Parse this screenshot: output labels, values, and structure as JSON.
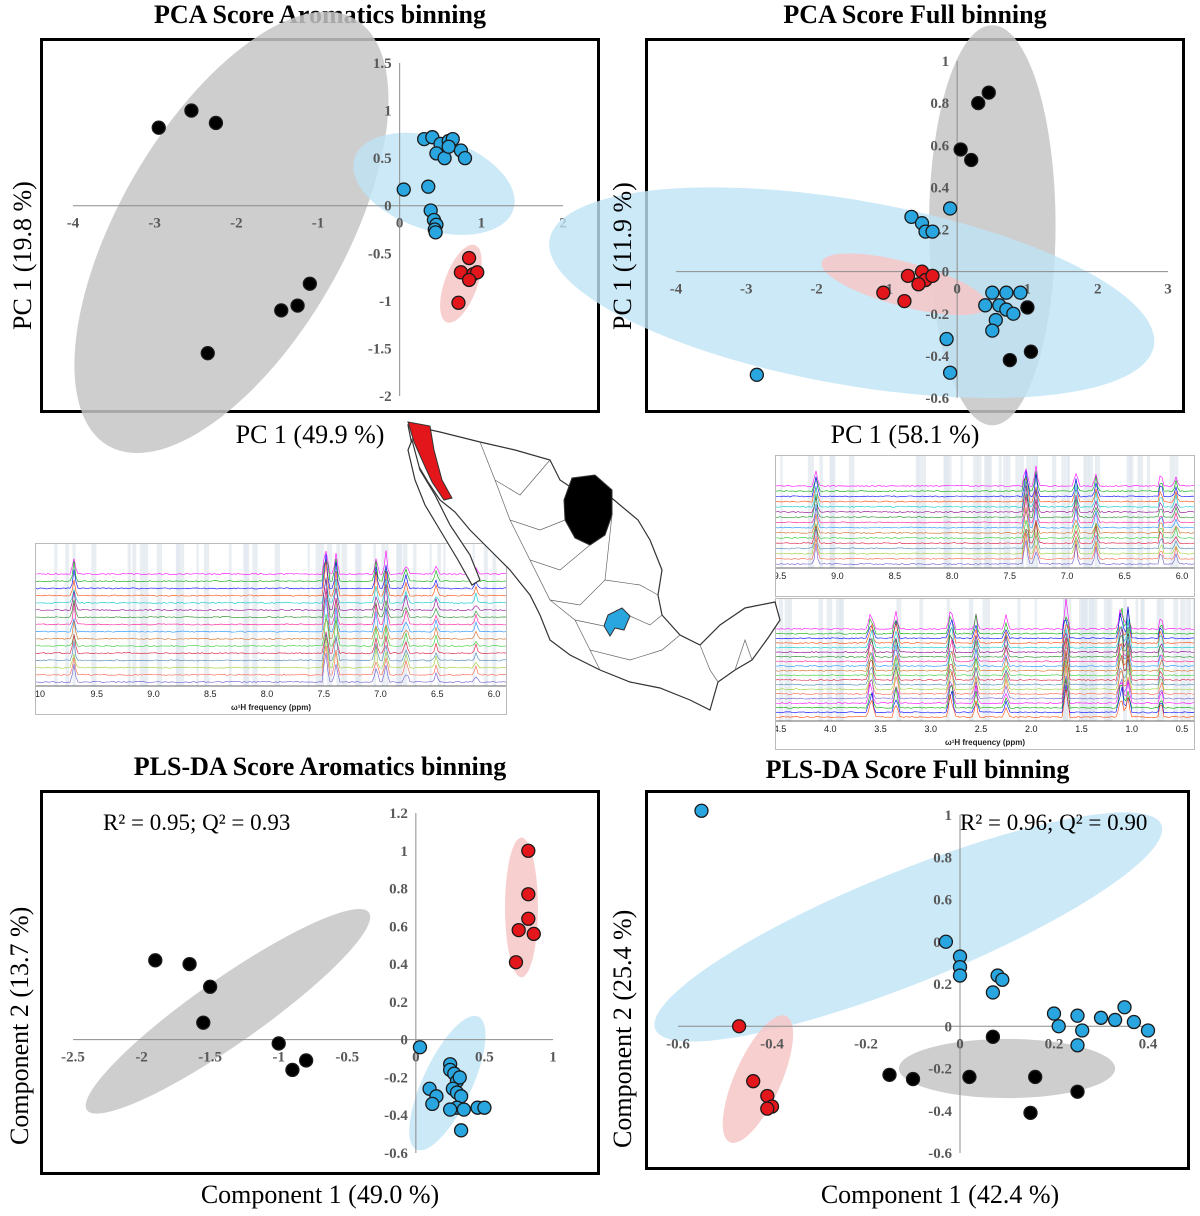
{
  "colors": {
    "blue": "#29a6e0",
    "red": "#e3161b",
    "black": "#000000",
    "blue_ell": "#bfe3f6",
    "red_ell": "#f7c7c7",
    "gray_ell": "#c6c6c6"
  },
  "spectra": {
    "xlabel": "ω¹H frequency (ppm)",
    "aromatic_ticks": [
      "10",
      "9.5",
      "9.0",
      "8.5",
      "8.0",
      "7.5",
      "7.0",
      "6.5",
      "6.0"
    ],
    "full_ticks": [
      "4.5",
      "4.0",
      "3.5",
      "3.0",
      "2.5",
      "2.0",
      "1.5",
      "1.0",
      "0.5"
    ]
  },
  "map": {
    "description_icon": "mexico-map-icon"
  },
  "chart_data": [
    {
      "id": "pca_arom",
      "type": "scatter",
      "title": "PCA Score Aromatics binning",
      "xlabel": "PC 1 (49.9 %)",
      "ylabel": "PC 1 (19.8 %)",
      "stats": "",
      "xlim": [
        -4,
        2
      ],
      "ylim": [
        -2,
        1.5
      ],
      "xticks": [
        "-4",
        "-3",
        "-2",
        "-1",
        "0",
        "1",
        "2"
      ],
      "yticks": [
        "-2",
        "-1.5",
        "-1",
        "-0.5",
        "0",
        "0.5",
        "1",
        "1.5"
      ],
      "ellipses": [
        {
          "group": "black",
          "cx": -2.06,
          "cy": -0.28,
          "rx": 2.0,
          "ry": 0.95,
          "angle": -60
        },
        {
          "group": "blue",
          "cx": 0.42,
          "cy": 0.23,
          "rx": 0.78,
          "ry": 0.4,
          "angle": 18
        },
        {
          "group": "red",
          "cx": 0.75,
          "cy": -0.82,
          "rx": 0.35,
          "ry": 0.15,
          "angle": -70
        }
      ],
      "series": [
        {
          "name": "black",
          "points": [
            [
              -2.95,
              0.82
            ],
            [
              -2.55,
              1.0
            ],
            [
              -2.25,
              0.87
            ],
            [
              -1.45,
              -1.1
            ],
            [
              -1.25,
              -1.05
            ],
            [
              -1.1,
              -0.82
            ],
            [
              -2.35,
              -1.55
            ]
          ]
        },
        {
          "name": "blue",
          "points": [
            [
              0.05,
              0.17
            ],
            [
              0.3,
              0.7
            ],
            [
              0.4,
              0.72
            ],
            [
              0.5,
              0.65
            ],
            [
              0.6,
              0.68
            ],
            [
              0.65,
              0.7
            ],
            [
              0.45,
              0.55
            ],
            [
              0.55,
              0.5
            ],
            [
              0.6,
              0.62
            ],
            [
              0.75,
              0.58
            ],
            [
              0.8,
              0.5
            ],
            [
              0.35,
              0.2
            ],
            [
              0.38,
              -0.05
            ],
            [
              0.42,
              -0.15
            ],
            [
              0.45,
              -0.2
            ],
            [
              0.43,
              -0.25
            ],
            [
              0.44,
              -0.28
            ]
          ]
        },
        {
          "name": "red",
          "points": [
            [
              0.85,
              -0.55
            ],
            [
              0.75,
              -0.7
            ],
            [
              0.9,
              -0.72
            ],
            [
              0.95,
              -0.7
            ],
            [
              0.85,
              -0.78
            ],
            [
              0.72,
              -1.02
            ]
          ]
        }
      ]
    },
    {
      "id": "pca_full",
      "type": "scatter",
      "title": "PCA Score Full binning",
      "xlabel": "PC 1 (58.1 %)",
      "ylabel": "PC 1 (11.9 %)",
      "stats": "",
      "xlim": [
        -4,
        3
      ],
      "ylim": [
        -0.6,
        1
      ],
      "xticks": [
        "-4",
        "-3",
        "-2",
        "-1",
        "0",
        "1",
        "2",
        "3"
      ],
      "yticks": [
        "-0.6",
        "-0.4",
        "-0.2",
        "0",
        "0.2",
        "0.4",
        "0.6",
        "0.8",
        "1"
      ],
      "ellipses": [
        {
          "group": "gray",
          "cx": 0.5,
          "cy": 0.22,
          "rx": 0.9,
          "ry": 0.95,
          "angle": 0
        },
        {
          "group": "blue",
          "cx": -1.5,
          "cy": -0.1,
          "rx": 2.9,
          "ry": 0.42,
          "angle": 10
        },
        {
          "group": "red",
          "cx": -0.75,
          "cy": -0.06,
          "rx": 0.7,
          "ry": 0.1,
          "angle": 15
        }
      ],
      "series": [
        {
          "name": "black",
          "points": [
            [
              0.3,
              0.8
            ],
            [
              0.45,
              0.85
            ],
            [
              0.05,
              0.58
            ],
            [
              0.2,
              0.53
            ],
            [
              1.0,
              -0.17
            ],
            [
              0.75,
              -0.42
            ],
            [
              1.05,
              -0.38
            ]
          ]
        },
        {
          "name": "blue",
          "points": [
            [
              -0.65,
              0.26
            ],
            [
              -0.5,
              0.23
            ],
            [
              -0.45,
              0.19
            ],
            [
              -0.35,
              0.19
            ],
            [
              -0.1,
              0.3
            ],
            [
              0.5,
              -0.1
            ],
            [
              0.7,
              -0.1
            ],
            [
              0.9,
              -0.1
            ],
            [
              0.4,
              -0.16
            ],
            [
              0.6,
              -0.16
            ],
            [
              0.7,
              -0.18
            ],
            [
              0.8,
              -0.2
            ],
            [
              0.55,
              -0.23
            ],
            [
              0.5,
              -0.28
            ],
            [
              -0.15,
              -0.32
            ],
            [
              -0.1,
              -0.48
            ],
            [
              -2.85,
              -0.49
            ]
          ]
        },
        {
          "name": "red",
          "points": [
            [
              -1.05,
              -0.1
            ],
            [
              -0.7,
              -0.02
            ],
            [
              -0.5,
              0.0
            ],
            [
              -0.45,
              -0.04
            ],
            [
              -0.35,
              -0.02
            ],
            [
              -0.55,
              -0.06
            ],
            [
              -0.75,
              -0.14
            ]
          ]
        }
      ]
    },
    {
      "id": "pls_arom",
      "type": "scatter",
      "title": "PLS-DA Score Aromatics binning",
      "xlabel": "Component 1 (49.0 %)",
      "ylabel": "Component 2 (13.7 %)",
      "stats": "R² = 0.95; Q² = 0.93",
      "xlim": [
        -2.5,
        1
      ],
      "ylim": [
        -0.6,
        1.2
      ],
      "xticks": [
        "-2.5",
        "-2",
        "-1.5",
        "-1",
        "-0.5",
        "0",
        "0.5",
        "1"
      ],
      "yticks": [
        "-0.6",
        "-0.4",
        "-0.2",
        "0",
        "0.2",
        "0.4",
        "0.6",
        "0.8",
        "1",
        "1.2"
      ],
      "ellipses": [
        {
          "group": "black",
          "cx": -1.37,
          "cy": 0.15,
          "rx": 0.78,
          "ry": 0.14,
          "angle": -35
        },
        {
          "group": "blue",
          "cx": 0.23,
          "cy": -0.23,
          "rx": 0.32,
          "ry": 0.12,
          "angle": -65
        },
        {
          "group": "red",
          "cx": 0.77,
          "cy": 0.7,
          "rx": 0.37,
          "ry": 0.12,
          "angle": -90
        }
      ],
      "series": [
        {
          "name": "black",
          "points": [
            [
              -1.9,
              0.42
            ],
            [
              -1.65,
              0.4
            ],
            [
              -1.5,
              0.28
            ],
            [
              -1.55,
              0.09
            ],
            [
              -1.0,
              -0.02
            ],
            [
              -0.9,
              -0.16
            ],
            [
              -0.8,
              -0.11
            ]
          ]
        },
        {
          "name": "blue",
          "points": [
            [
              0.03,
              -0.04
            ],
            [
              0.25,
              -0.13
            ],
            [
              0.25,
              -0.16
            ],
            [
              0.28,
              -0.18
            ],
            [
              0.3,
              -0.22
            ],
            [
              0.32,
              -0.2
            ],
            [
              0.27,
              -0.26
            ],
            [
              0.3,
              -0.28
            ],
            [
              0.33,
              -0.3
            ],
            [
              0.1,
              -0.26
            ],
            [
              0.15,
              -0.3
            ],
            [
              0.12,
              -0.34
            ],
            [
              0.3,
              -0.36
            ],
            [
              0.25,
              -0.37
            ],
            [
              0.35,
              -0.37
            ],
            [
              0.45,
              -0.36
            ],
            [
              0.5,
              -0.36
            ],
            [
              0.33,
              -0.48
            ]
          ]
        },
        {
          "name": "red",
          "points": [
            [
              0.82,
              1.0
            ],
            [
              0.82,
              0.77
            ],
            [
              0.82,
              0.64
            ],
            [
              0.75,
              0.58
            ],
            [
              0.86,
              0.56
            ],
            [
              0.73,
              0.41
            ]
          ]
        }
      ]
    },
    {
      "id": "pls_full",
      "type": "scatter",
      "title": "PLS-DA Score Full binning",
      "xlabel": "Component 1 (42.4 %)",
      "ylabel": "Component 2 (25.4 %)",
      "stats": "R² = 0.96; Q² = 0.90",
      "xlim": [
        -0.6,
        0.4
      ],
      "ylim": [
        -0.6,
        1
      ],
      "xticks": [
        "-0.6",
        "-0.4",
        "-0.2",
        "0",
        "0.2",
        "0.4"
      ],
      "yticks": [
        "-0.6",
        "-0.4",
        "-0.2",
        "0",
        "0.2",
        "0.4",
        "0.6",
        "0.8",
        "1"
      ],
      "ellipses": [
        {
          "group": "blue",
          "cx": -0.11,
          "cy": 0.47,
          "rx": 0.53,
          "ry": 0.15,
          "angle": -22
        },
        {
          "group": "gray",
          "cx": 0.1,
          "cy": -0.2,
          "rx": 0.23,
          "ry": 0.14,
          "angle": 0
        },
        {
          "group": "red",
          "cx": -0.43,
          "cy": -0.25,
          "rx": 0.18,
          "ry": 0.045,
          "angle": -66
        }
      ],
      "series": [
        {
          "name": "blue",
          "points": [
            [
              -0.55,
              1.02
            ],
            [
              -0.03,
              0.4
            ],
            [
              0.0,
              0.33
            ],
            [
              0.0,
              0.28
            ],
            [
              0.0,
              0.24
            ],
            [
              0.08,
              0.24
            ],
            [
              0.09,
              0.22
            ],
            [
              0.07,
              0.16
            ],
            [
              0.2,
              0.06
            ],
            [
              0.25,
              0.05
            ],
            [
              0.3,
              0.04
            ],
            [
              0.35,
              0.09
            ],
            [
              0.33,
              0.03
            ],
            [
              0.37,
              0.02
            ],
            [
              0.4,
              -0.02
            ],
            [
              0.21,
              0.0
            ],
            [
              0.26,
              -0.02
            ],
            [
              0.25,
              -0.09
            ]
          ]
        },
        {
          "name": "black",
          "points": [
            [
              -0.15,
              -0.23
            ],
            [
              -0.1,
              -0.25
            ],
            [
              0.02,
              -0.24
            ],
            [
              0.07,
              -0.05
            ],
            [
              0.16,
              -0.24
            ],
            [
              0.25,
              -0.31
            ],
            [
              0.15,
              -0.41
            ]
          ]
        },
        {
          "name": "red",
          "points": [
            [
              -0.47,
              0.0
            ],
            [
              -0.44,
              -0.26
            ],
            [
              -0.41,
              -0.33
            ],
            [
              -0.4,
              -0.38
            ],
            [
              -0.41,
              -0.39
            ]
          ]
        }
      ]
    }
  ]
}
